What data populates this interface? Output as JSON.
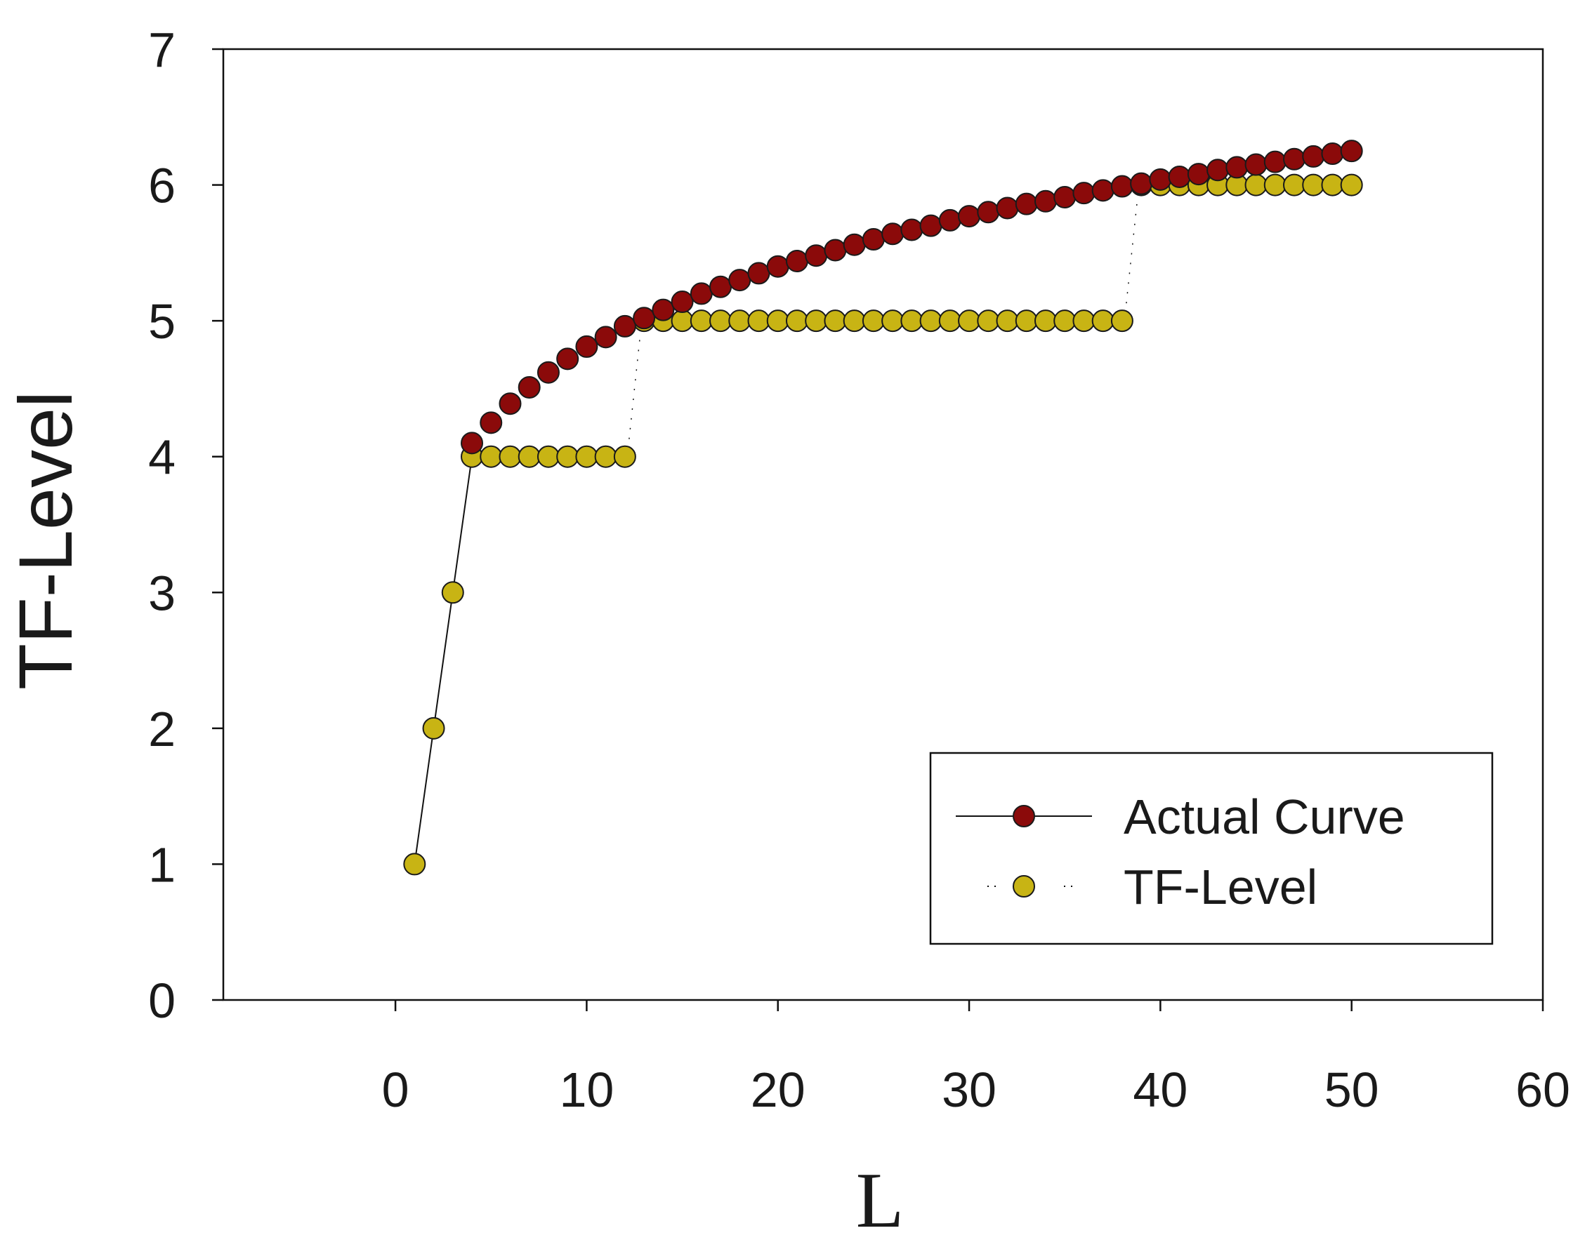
{
  "chart_data": {
    "type": "scatter",
    "title": "",
    "xlabel": "L",
    "ylabel": "TF-Level",
    "xlim": [
      -9,
      60
    ],
    "ylim": [
      0,
      7
    ],
    "xticks": [
      0,
      10,
      20,
      30,
      40,
      50,
      60
    ],
    "yticks": [
      0,
      1,
      2,
      3,
      4,
      5,
      6,
      7
    ],
    "grid": false,
    "legend_position": "bottom-right",
    "series": [
      {
        "name": "Actual Curve",
        "color": "#8b0a0a",
        "marker": "circle",
        "line": "solid",
        "x": [
          4,
          5,
          6,
          7,
          8,
          9,
          10,
          11,
          12,
          13,
          14,
          15,
          16,
          17,
          18,
          19,
          20,
          21,
          22,
          23,
          24,
          25,
          26,
          27,
          28,
          29,
          30,
          31,
          32,
          33,
          34,
          35,
          36,
          37,
          38,
          39,
          40,
          41,
          42,
          43,
          44,
          45,
          46,
          47,
          48,
          49,
          50
        ],
        "y": [
          4.1,
          4.25,
          4.39,
          4.51,
          4.62,
          4.72,
          4.81,
          4.88,
          4.96,
          5.02,
          5.08,
          5.14,
          5.2,
          5.25,
          5.3,
          5.35,
          5.4,
          5.44,
          5.48,
          5.52,
          5.56,
          5.6,
          5.64,
          5.67,
          5.7,
          5.74,
          5.77,
          5.8,
          5.83,
          5.86,
          5.88,
          5.91,
          5.94,
          5.96,
          5.99,
          6.01,
          6.04,
          6.06,
          6.08,
          6.11,
          6.13,
          6.15,
          6.17,
          6.19,
          6.21,
          6.23,
          6.25
        ]
      },
      {
        "name": "TF-Level",
        "color": "#c8b414",
        "marker": "circle",
        "line": "dotted",
        "x": [
          1,
          2,
          3,
          4,
          5,
          6,
          7,
          8,
          9,
          10,
          11,
          12,
          13,
          14,
          15,
          16,
          17,
          18,
          19,
          20,
          21,
          22,
          23,
          24,
          25,
          26,
          27,
          28,
          29,
          30,
          31,
          32,
          33,
          34,
          35,
          36,
          37,
          38,
          39,
          40,
          41,
          42,
          43,
          44,
          45,
          46,
          47,
          48,
          49,
          50
        ],
        "y": [
          1,
          2,
          3,
          4,
          4,
          4,
          4,
          4,
          4,
          4,
          4,
          4,
          5,
          5,
          5,
          5,
          5,
          5,
          5,
          5,
          5,
          5,
          5,
          5,
          5,
          5,
          5,
          5,
          5,
          5,
          5,
          5,
          5,
          5,
          5,
          5,
          5,
          5,
          6,
          6,
          6,
          6,
          6,
          6,
          6,
          6,
          6,
          6,
          6,
          6
        ]
      }
    ]
  }
}
